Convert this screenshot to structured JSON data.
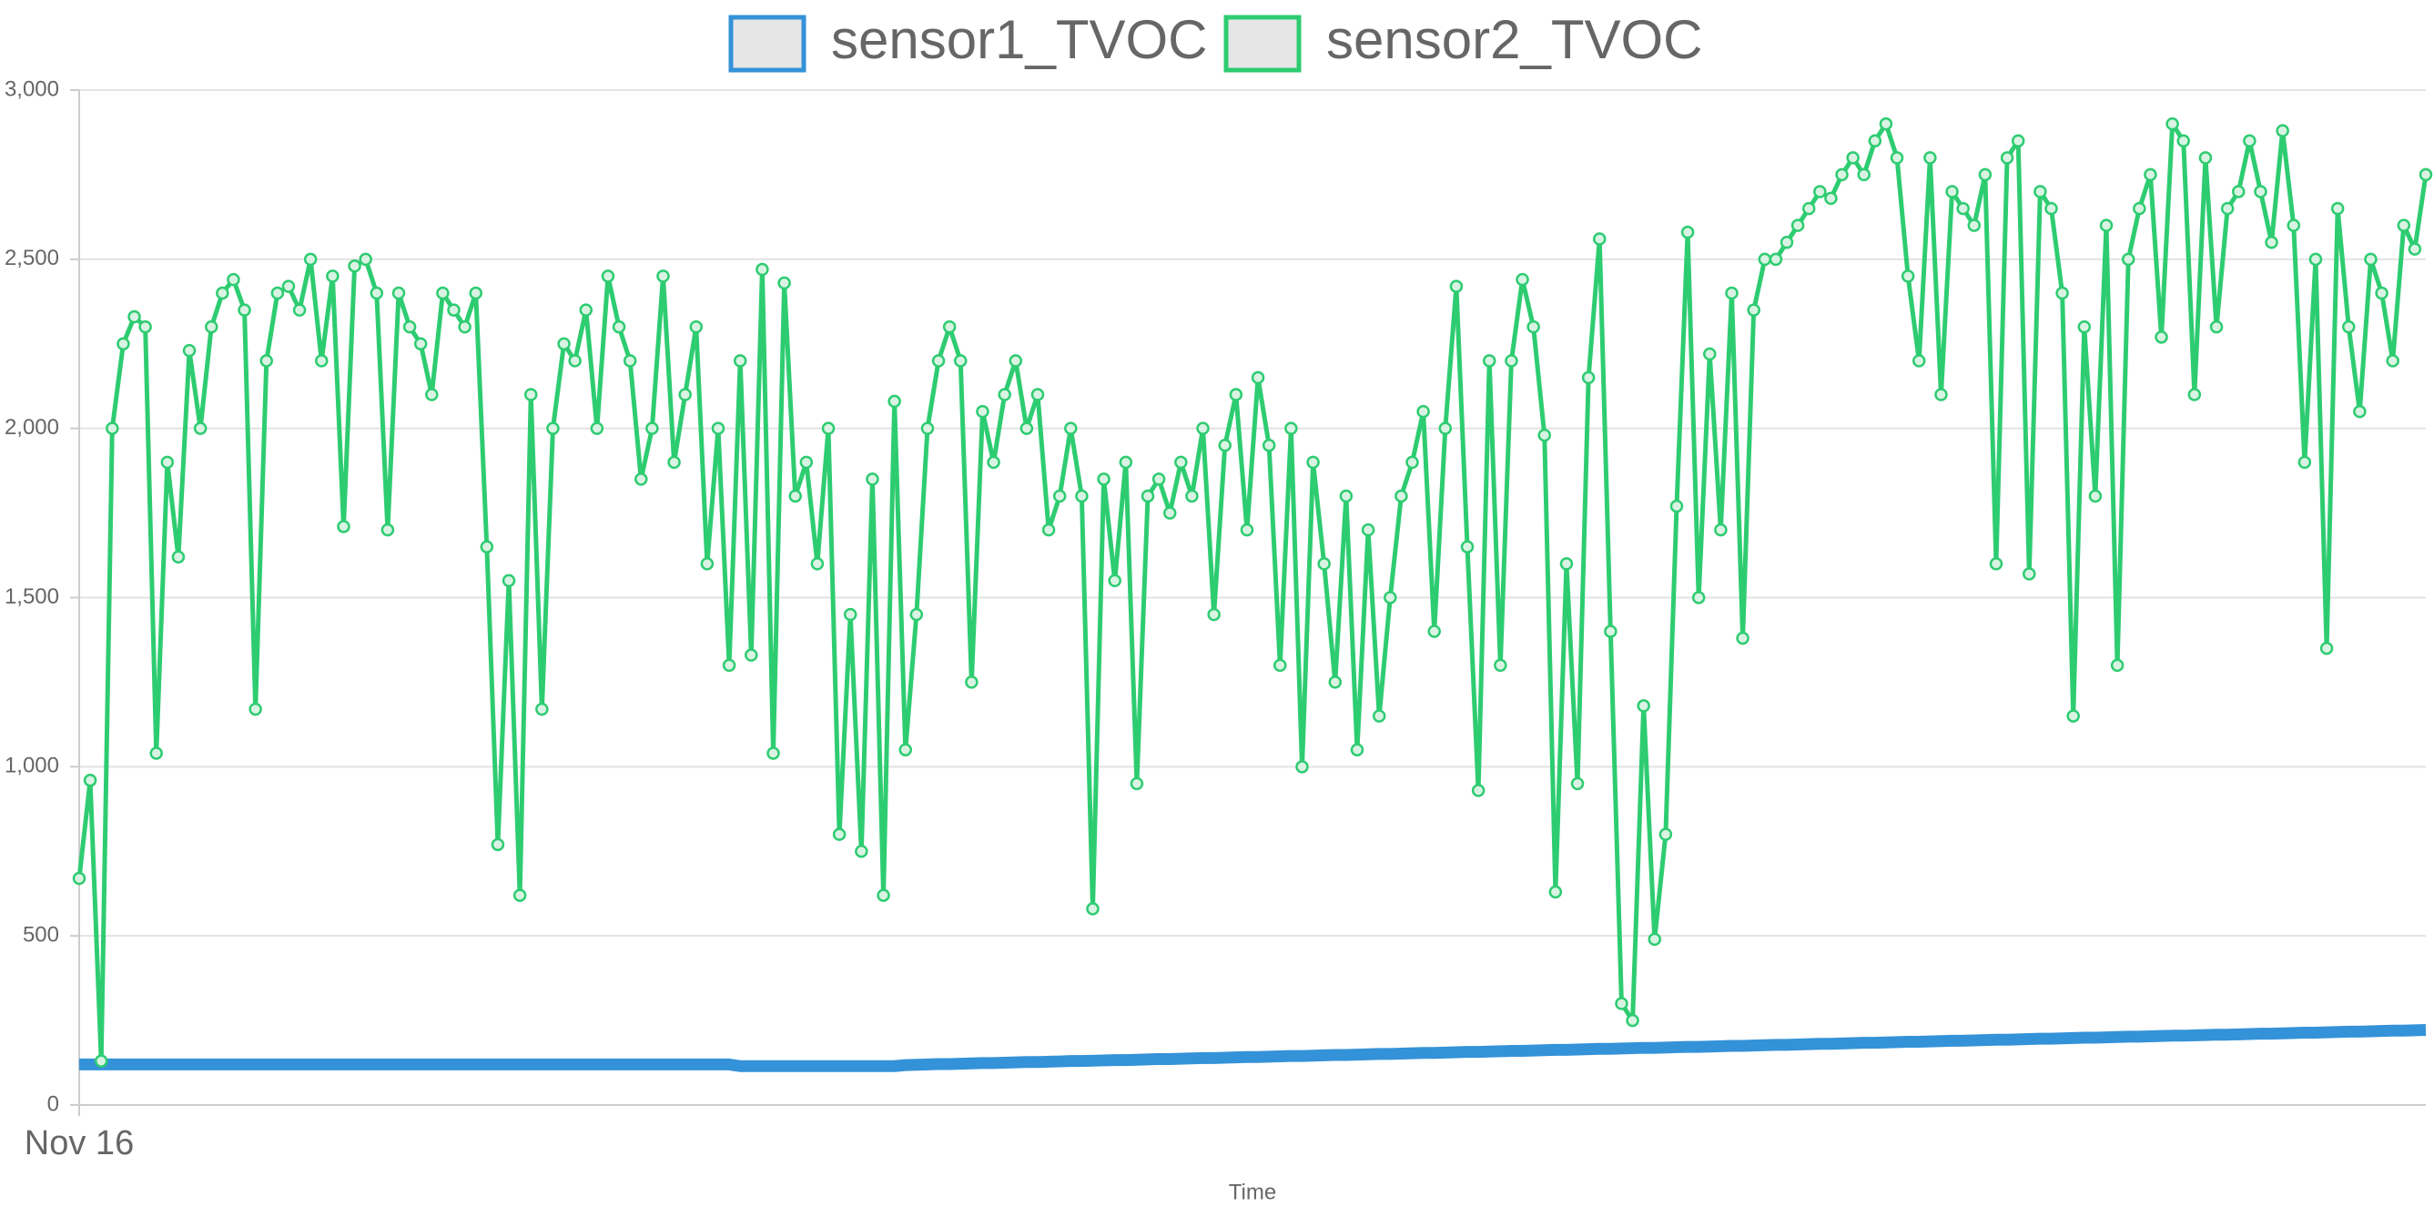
{
  "chart_data": {
    "type": "line",
    "x_label": "Time",
    "categories": [
      "Nov 16",
      null,
      null,
      null,
      null,
      null,
      null,
      null,
      null,
      null,
      null,
      null,
      null,
      null,
      null,
      null,
      null,
      null,
      null,
      null,
      null,
      null,
      null,
      null,
      null,
      null,
      null,
      null,
      null,
      null,
      null,
      null,
      null,
      null,
      null,
      null,
      null,
      null,
      null,
      null,
      null,
      null,
      null,
      null,
      null,
      null,
      null,
      null,
      null,
      null,
      null,
      null,
      null,
      null,
      null,
      null,
      null,
      null,
      null,
      null,
      null,
      null,
      null,
      null,
      null,
      null,
      null,
      null,
      null,
      null,
      null,
      null,
      null,
      null,
      null,
      null,
      null,
      null,
      null,
      null,
      null,
      null,
      null,
      null,
      null,
      null,
      null,
      null,
      null,
      null,
      null,
      null,
      null,
      null,
      null,
      null,
      null,
      null,
      null,
      null,
      null,
      null,
      null,
      null,
      null,
      null,
      null,
      null,
      null,
      null,
      null,
      null,
      null,
      null,
      null,
      null,
      null,
      null,
      null,
      null,
      null,
      null,
      null,
      null,
      null,
      null,
      null,
      null,
      null,
      null,
      null,
      null,
      null,
      null,
      null,
      null,
      null,
      null,
      null,
      null,
      null,
      null,
      null,
      null,
      null,
      null,
      null,
      null,
      null,
      null,
      null,
      null,
      null,
      null,
      null,
      null,
      null,
      null,
      null,
      null,
      null,
      null,
      null,
      null,
      null,
      null,
      null,
      null,
      null,
      null,
      null,
      null,
      null,
      null,
      null,
      null,
      null,
      null,
      null,
      null,
      null,
      null,
      null,
      null,
      null,
      null,
      null,
      null,
      null,
      null,
      null,
      null,
      null,
      null,
      null,
      null,
      null,
      null,
      null,
      null,
      null,
      null,
      null,
      null,
      null,
      null,
      null,
      null,
      null,
      null,
      null,
      null,
      null,
      null
    ],
    "series": [
      {
        "name": "sensor1_TVOC",
        "color": "#3492d8",
        "values": [
          120,
          120,
          120,
          120,
          120,
          120,
          120,
          120,
          120,
          120,
          120,
          120,
          120,
          120,
          120,
          120,
          120,
          120,
          120,
          120,
          120,
          120,
          120,
          120,
          120,
          120,
          120,
          120,
          120,
          120,
          120,
          120,
          120,
          120,
          120,
          120,
          120,
          120,
          120,
          120,
          120,
          120,
          120,
          120,
          120,
          120,
          120,
          120,
          120,
          120,
          120,
          120,
          120,
          120,
          120,
          120,
          120,
          120,
          120,
          120,
          115,
          115,
          115,
          115,
          115,
          115,
          115,
          115,
          115,
          115,
          115,
          115,
          115,
          115,
          115,
          118,
          119,
          120,
          121,
          121,
          122,
          123,
          124,
          124,
          125,
          126,
          127,
          127,
          128,
          129,
          130,
          130,
          131,
          132,
          133,
          133,
          134,
          135,
          136,
          136,
          137,
          138,
          139,
          139,
          140,
          141,
          142,
          142,
          143,
          144,
          145,
          145,
          146,
          147,
          148,
          148,
          149,
          150,
          151,
          151,
          152,
          153,
          154,
          154,
          155,
          156,
          157,
          157,
          158,
          159,
          160,
          160,
          161,
          162,
          163,
          163,
          164,
          165,
          166,
          166,
          167,
          168,
          169,
          169,
          170,
          171,
          172,
          172,
          173,
          174,
          175,
          175,
          176,
          177,
          178,
          178,
          179,
          180,
          181,
          181,
          182,
          183,
          184,
          184,
          185,
          186,
          187,
          187,
          188,
          189,
          190,
          190,
          191,
          192,
          193,
          193,
          194,
          195,
          196,
          196,
          197,
          198,
          199,
          199,
          200,
          201,
          202,
          202,
          203,
          204,
          205,
          205,
          206,
          207,
          208,
          208,
          209,
          210,
          211,
          211,
          212,
          213,
          214,
          214,
          215,
          216,
          217,
          217,
          218,
          219,
          220,
          220,
          221,
          222
        ]
      },
      {
        "name": "sensor2_TVOC",
        "color": "#2ecc71",
        "values": [
          670,
          960,
          130,
          2000,
          2250,
          2330,
          2300,
          1040,
          1900,
          1620,
          2230,
          2000,
          2300,
          2400,
          2440,
          2350,
          1170,
          2200,
          2400,
          2420,
          2350,
          2500,
          2200,
          2450,
          1710,
          2480,
          2500,
          2400,
          1700,
          2400,
          2300,
          2250,
          2100,
          2400,
          2350,
          2300,
          2400,
          1650,
          770,
          1550,
          620,
          2100,
          1170,
          2000,
          2250,
          2200,
          2350,
          2000,
          2450,
          2300,
          2200,
          1850,
          2000,
          2450,
          1900,
          2100,
          2300,
          1600,
          2000,
          1300,
          2200,
          1330,
          2470,
          1040,
          2430,
          1800,
          1900,
          1600,
          2000,
          800,
          1450,
          750,
          1850,
          620,
          2080,
          1050,
          1450,
          2000,
          2200,
          2300,
          2200,
          1250,
          2050,
          1900,
          2100,
          2200,
          2000,
          2100,
          1700,
          1800,
          2000,
          1800,
          580,
          1850,
          1550,
          1900,
          950,
          1800,
          1850,
          1750,
          1900,
          1800,
          2000,
          1450,
          1950,
          2100,
          1700,
          2150,
          1950,
          1300,
          2000,
          1000,
          1900,
          1600,
          1250,
          1800,
          1050,
          1700,
          1150,
          1500,
          1800,
          1900,
          2050,
          1400,
          2000,
          2420,
          1650,
          930,
          2200,
          1300,
          2200,
          2440,
          2300,
          1980,
          630,
          1600,
          950,
          2150,
          2560,
          1400,
          300,
          250,
          1180,
          490,
          800,
          1770,
          2580,
          1500,
          2220,
          1700,
          2400,
          1380,
          2350,
          2500,
          2500,
          2550,
          2600,
          2650,
          2700,
          2680,
          2750,
          2800,
          2750,
          2850,
          2900,
          2800,
          2450,
          2200,
          2800,
          2100,
          2700,
          2650,
          2600,
          2750,
          1600,
          2800,
          2850,
          1570,
          2700,
          2650,
          2400,
          1150,
          2300,
          1800,
          2600,
          1300,
          2500,
          2650,
          2750,
          2270,
          2900,
          2850,
          2100,
          2800,
          2300,
          2650,
          2700,
          2850,
          2700,
          2550,
          2880,
          2600,
          1900,
          2500,
          1350,
          2650,
          2300,
          2050,
          2500,
          2400,
          2200,
          2600,
          2530,
          2750
        ]
      }
    ],
    "ylim": [
      0,
      3000
    ],
    "yticks": [
      0,
      500,
      {
        "value": 1000,
        "label": "1,000"
      },
      {
        "value": 1500,
        "label": "1,500"
      },
      {
        "value": 2000,
        "label": "2,000"
      },
      {
        "value": 2500,
        "label": "2,500"
      },
      {
        "value": 3000,
        "label": "3,000"
      }
    ],
    "grid": true,
    "legend": "top"
  }
}
